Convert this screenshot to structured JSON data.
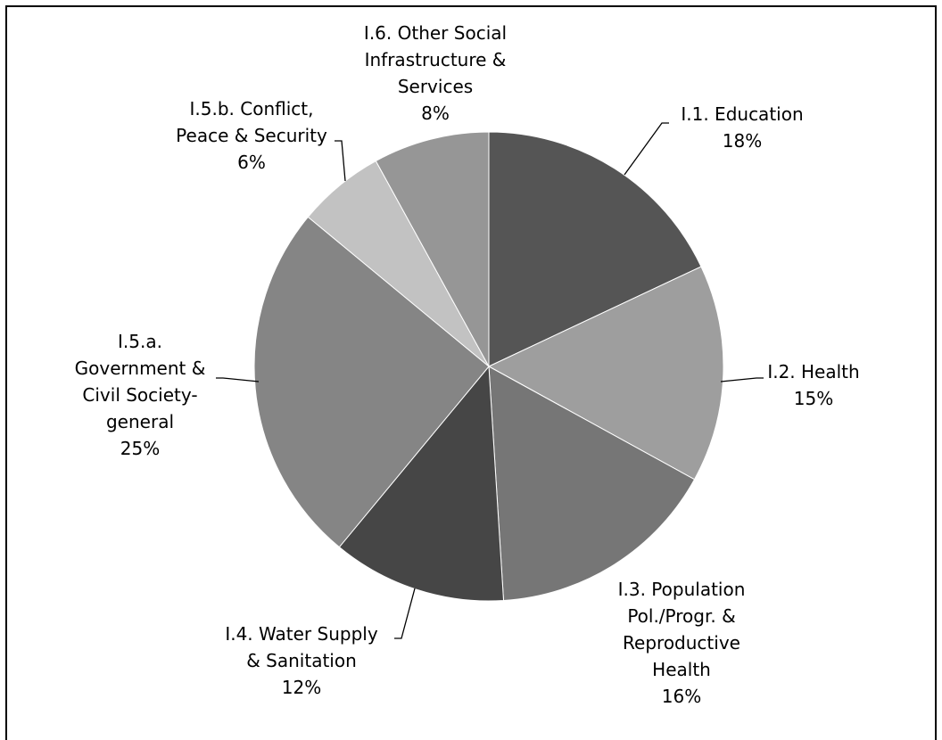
{
  "chart_data": {
    "type": "pie",
    "slices": [
      {
        "label": "I.1. Education",
        "percent_label": "18%",
        "value": 18,
        "color": "#555555"
      },
      {
        "label": "I.2. Health",
        "percent_label": "15%",
        "value": 15,
        "color": "#9e9e9e"
      },
      {
        "label": "I.3. Population Pol./Progr. & Reproductive Health",
        "percent_label": "16%",
        "value": 16,
        "color": "#767676"
      },
      {
        "label": "I.4. Water Supply & Sanitation",
        "percent_label": "12%",
        "value": 12,
        "color": "#464646"
      },
      {
        "label": "I.5.a. Government & Civil Society-general",
        "percent_label": "25%",
        "value": 25,
        "color": "#858585"
      },
      {
        "label": "I.5.b. Conflict, Peace & Security",
        "percent_label": "6%",
        "value": 6,
        "color": "#c2c2c2"
      },
      {
        "label": "I.6. Other Social Infrastructure & Services",
        "percent_label": "8%",
        "value": 8,
        "color": "#969696"
      }
    ]
  }
}
